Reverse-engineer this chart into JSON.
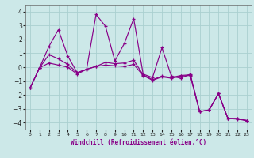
{
  "xlabel": "Windchill (Refroidissement éolien,°C)",
  "bg_color": "#cce8e8",
  "line_color": "#880088",
  "grid_color": "#aad0d0",
  "xlim": [
    -0.5,
    23.5
  ],
  "ylim": [
    -4.5,
    4.5
  ],
  "xticks": [
    0,
    1,
    2,
    3,
    4,
    5,
    6,
    7,
    8,
    9,
    10,
    11,
    12,
    13,
    14,
    15,
    16,
    17,
    18,
    19,
    20,
    21,
    22,
    23
  ],
  "yticks": [
    -4,
    -3,
    -2,
    -1,
    0,
    1,
    2,
    3,
    4
  ],
  "x": [
    0,
    1,
    2,
    3,
    4,
    5,
    6,
    7,
    8,
    9,
    10,
    11,
    12,
    13,
    14,
    15,
    16,
    17,
    18,
    19,
    20,
    21,
    22,
    23
  ],
  "y_spiky": [
    -1.5,
    -0.05,
    1.5,
    2.7,
    0.8,
    -0.4,
    -0.15,
    3.8,
    2.95,
    0.45,
    1.7,
    3.5,
    -0.5,
    -0.75,
    1.4,
    -0.65,
    -0.8,
    -0.5,
    -3.2,
    -3.1,
    -1.9,
    -3.7,
    -3.7,
    -3.85
  ],
  "y_line1": [
    -1.5,
    -0.05,
    0.9,
    0.6,
    0.2,
    -0.4,
    -0.15,
    0.05,
    0.35,
    0.25,
    0.3,
    0.5,
    -0.55,
    -0.9,
    -0.65,
    -0.75,
    -0.6,
    -0.55,
    -3.2,
    -3.1,
    -1.9,
    -3.7,
    -3.7,
    -3.85
  ],
  "y_line2": [
    -1.5,
    -0.05,
    0.3,
    0.15,
    0.0,
    -0.5,
    -0.15,
    0.05,
    0.15,
    0.1,
    0.05,
    0.2,
    -0.6,
    -0.95,
    -0.7,
    -0.8,
    -0.65,
    -0.6,
    -3.2,
    -3.1,
    -1.9,
    -3.7,
    -3.75,
    -3.85
  ]
}
